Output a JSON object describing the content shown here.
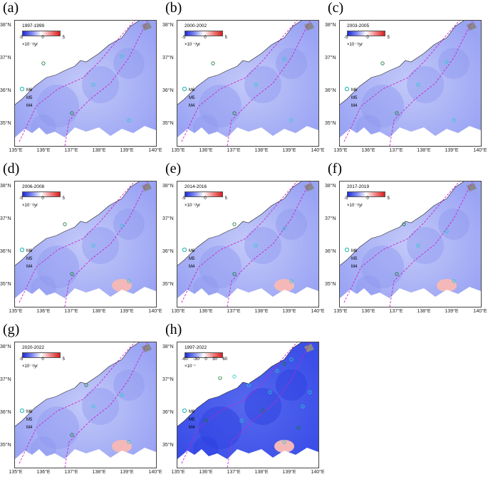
{
  "axes": {
    "y_labels": [
      "38°N",
      "37°N",
      "36°N",
      "35°N"
    ],
    "x_labels": [
      "135°E",
      "136°E",
      "137°E",
      "138°E",
      "139°E",
      "140°E"
    ]
  },
  "colorbar": {
    "ticks": [
      "-5",
      "0",
      "5"
    ],
    "unit": "×10⁻⁷/yr",
    "colors": [
      "#1d2bd8",
      "#7f88f0",
      "#ffffff",
      "#f08585",
      "#d81d1d"
    ]
  },
  "legend": {
    "items": [
      {
        "label": "M6",
        "color": "#cc22cc"
      },
      {
        "label": "M5",
        "color": "#117733"
      },
      {
        "label": "M4",
        "color": "#22cccc"
      }
    ]
  },
  "panels": [
    {
      "label": "(a)",
      "period": "1997-1999"
    },
    {
      "label": "(b)",
      "period": "2000-2002"
    },
    {
      "label": "(c)",
      "period": "2003-2005"
    },
    {
      "label": "(d)",
      "period": "2006-2008"
    },
    {
      "label": "(e)",
      "period": "2014-2016"
    },
    {
      "label": "(f)",
      "period": "2017-2019"
    },
    {
      "label": "(g)",
      "period": "2020-2022"
    },
    {
      "label": "(h)",
      "period": "1997-2022",
      "ticks": [
        "-60",
        "-30",
        "0",
        "30",
        "60"
      ],
      "unit": "×10⁻⁷"
    }
  ]
}
